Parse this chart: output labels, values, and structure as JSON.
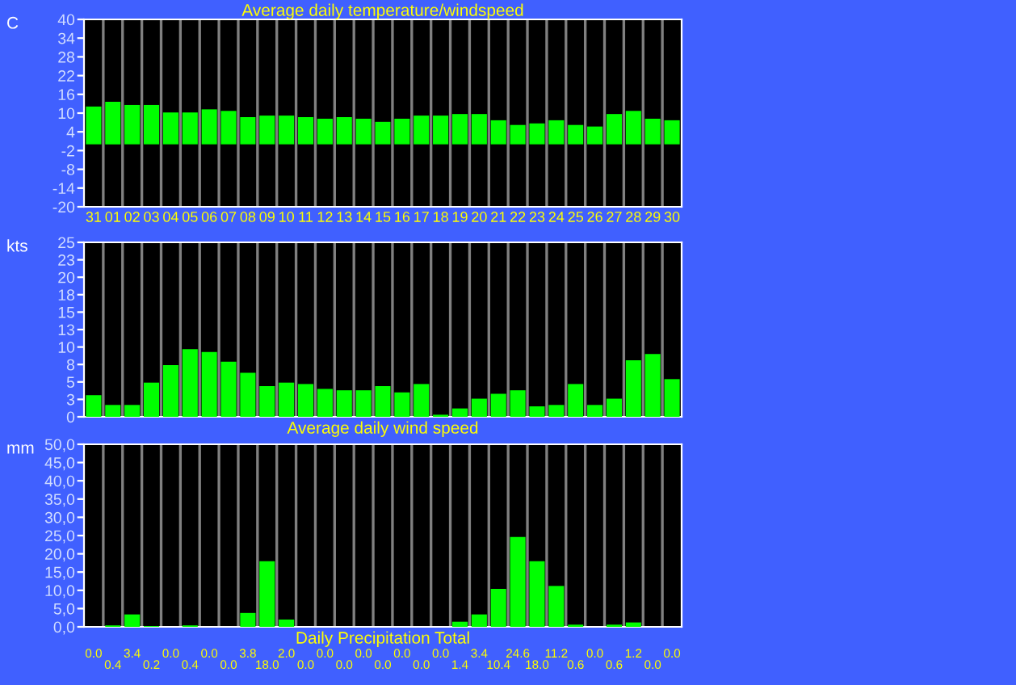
{
  "chart_data": [
    {
      "type": "bar",
      "title": "Average daily temperature/windspeed",
      "ylabel": "C",
      "categories": [
        "31",
        "01",
        "02",
        "03",
        "04",
        "05",
        "06",
        "07",
        "08",
        "09",
        "10",
        "11",
        "12",
        "13",
        "14",
        "15",
        "16",
        "17",
        "18",
        "19",
        "20",
        "21",
        "22",
        "23",
        "24",
        "25",
        "26",
        "27",
        "28",
        "29",
        "30"
      ],
      "values": [
        12.1,
        13.6,
        12.6,
        12.6,
        10.2,
        10.2,
        11.2,
        10.7,
        8.7,
        9.2,
        9.2,
        8.7,
        8.2,
        8.7,
        8.2,
        7.2,
        8.2,
        9.2,
        9.2,
        9.7,
        9.7,
        7.7,
        6.2,
        6.7,
        7.7,
        6.2,
        5.7,
        9.7,
        10.7,
        8.2,
        7.7
      ],
      "color": "#00ff00",
      "ylim": [
        -20,
        40
      ],
      "yticks": [
        40,
        34,
        28,
        22,
        16,
        10,
        4,
        -2,
        -8,
        -14,
        -20
      ],
      "grid": "x"
    },
    {
      "type": "bar",
      "ylabel": "kts",
      "xlabel": "Average daily wind speed",
      "categories": [
        "31",
        "01",
        "02",
        "03",
        "04",
        "05",
        "06",
        "07",
        "08",
        "09",
        "10",
        "11",
        "12",
        "13",
        "14",
        "15",
        "16",
        "17",
        "18",
        "19",
        "20",
        "21",
        "22",
        "23",
        "24",
        "25",
        "26",
        "27",
        "28",
        "29",
        "30"
      ],
      "values": [
        3.1,
        1.7,
        1.7,
        4.9,
        7.4,
        9.7,
        9.3,
        7.9,
        6.3,
        4.4,
        4.9,
        4.7,
        4.0,
        3.8,
        3.8,
        4.4,
        3.5,
        4.7,
        0.3,
        1.2,
        2.6,
        3.3,
        3.8,
        1.5,
        1.7,
        4.7,
        1.7,
        2.6,
        8.1,
        9.0,
        5.4
      ],
      "color": "#00ff00",
      "ylim": [
        0,
        25
      ],
      "yticks": [
        25,
        {
          "value": 22.5,
          "label": "23"
        },
        20,
        {
          "value": 17.5,
          "label": "18"
        },
        15,
        {
          "value": 12.5,
          "label": "13"
        },
        10,
        {
          "value": 7.5,
          "label": "8"
        },
        5,
        {
          "value": 2.5,
          "label": "3"
        },
        0
      ],
      "grid": "x",
      "tick_labels": "y"
    },
    {
      "type": "bar",
      "ylabel": "mm",
      "xlabel": "Daily Precipitation Total",
      "categories": [
        "31",
        "01",
        "02",
        "03",
        "04",
        "05",
        "06",
        "07",
        "08",
        "09",
        "10",
        "11",
        "12",
        "13",
        "14",
        "15",
        "16",
        "17",
        "18",
        "19",
        "20",
        "21",
        "22",
        "23",
        "24",
        "25",
        "26",
        "27",
        "28",
        "29",
        "30"
      ],
      "values": [
        0.0,
        0.4,
        3.4,
        0.2,
        0.0,
        0.4,
        0.0,
        0.0,
        3.8,
        18.0,
        2.0,
        0.0,
        0.0,
        0.0,
        0.0,
        0.0,
        0.0,
        0.0,
        0.0,
        1.4,
        3.4,
        10.4,
        24.6,
        18.0,
        11.2,
        0.6,
        0.0,
        0.6,
        1.2,
        0.0,
        0.0
      ],
      "value_labels": [
        "0.0",
        "0.4",
        "3.4",
        "0.2",
        "0.0",
        "0.4",
        "0.0",
        "0.0",
        "3.8",
        "18.0",
        "2.0",
        "0.0",
        "0.0",
        "0.0",
        "0.0",
        "0.0",
        "0.0",
        "0.0",
        "0.0",
        "1.4",
        "3.4",
        "10.4",
        "24.6",
        "18.0",
        "11.2",
        "0.6",
        "0.0",
        "0.6",
        "1.2",
        "0.0",
        "0.0"
      ],
      "color": "#00ff00",
      "ylim": [
        0,
        50
      ],
      "yticks": [
        {
          "value": 50,
          "label": "50,0"
        },
        {
          "value": 45,
          "label": "45,0"
        },
        {
          "value": 40,
          "label": "40,0"
        },
        {
          "value": 35,
          "label": "35,0"
        },
        {
          "value": 30,
          "label": "30,0"
        },
        {
          "value": 25,
          "label": "25,0"
        },
        {
          "value": 20,
          "label": "20,0"
        },
        {
          "value": 15,
          "label": "15,0"
        },
        {
          "value": 10,
          "label": "10,0"
        },
        {
          "value": 5,
          "label": "5,0"
        },
        {
          "value": 0,
          "label": "0,0"
        }
      ],
      "grid": "x",
      "tick_labels": "y"
    }
  ]
}
